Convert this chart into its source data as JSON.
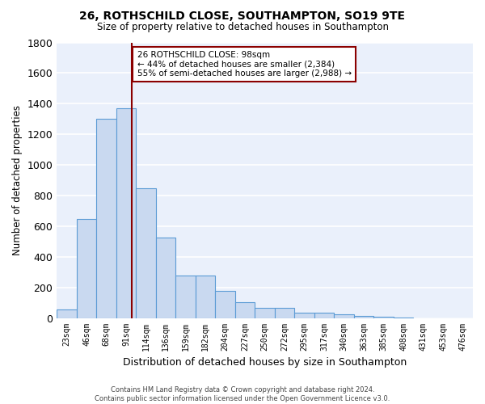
{
  "title1": "26, ROTHSCHILD CLOSE, SOUTHAMPTON, SO19 9TE",
  "title2": "Size of property relative to detached houses in Southampton",
  "xlabel": "Distribution of detached houses by size in Southampton",
  "ylabel": "Number of detached properties",
  "categories": [
    "23sqm",
    "46sqm",
    "68sqm",
    "91sqm",
    "114sqm",
    "136sqm",
    "159sqm",
    "182sqm",
    "204sqm",
    "227sqm",
    "250sqm",
    "272sqm",
    "295sqm",
    "317sqm",
    "340sqm",
    "363sqm",
    "385sqm",
    "408sqm",
    "431sqm",
    "453sqm",
    "476sqm"
  ],
  "values": [
    55,
    645,
    1300,
    1370,
    845,
    525,
    275,
    275,
    175,
    105,
    65,
    65,
    35,
    35,
    25,
    12,
    8,
    5,
    0,
    0,
    0
  ],
  "bar_color": "#c9d9f0",
  "bar_edge_color": "#5b9bd5",
  "background_color": "#eaf0fb",
  "grid_color": "#ffffff",
  "vline_x": 3.5,
  "vline_color": "#8b0000",
  "annotation_line1": "26 ROTHSCHILD CLOSE: 98sqm",
  "annotation_line2": "← 44% of detached houses are smaller (2,384)",
  "annotation_line3": "55% of semi-detached houses are larger (2,988) →",
  "annotation_box_color": "#8b0000",
  "annotation_box_bg": "#ffffff",
  "footnote_line1": "Contains HM Land Registry data © Crown copyright and database right 2024.",
  "footnote_line2": "Contains public sector information licensed under the Open Government Licence v3.0.",
  "ylim": [
    0,
    1800
  ],
  "yticks": [
    0,
    200,
    400,
    600,
    800,
    1000,
    1200,
    1400,
    1600,
    1800
  ]
}
